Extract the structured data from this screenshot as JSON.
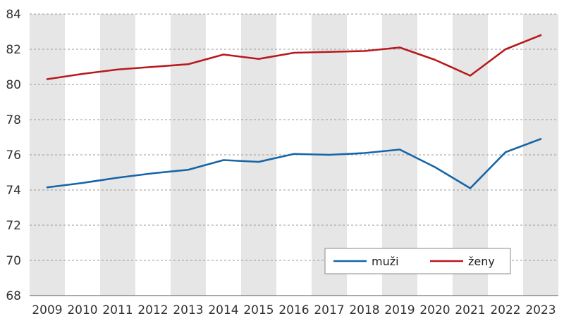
{
  "chart_data": {
    "type": "line",
    "title": "",
    "xlabel": "",
    "ylabel": "",
    "categories": [
      "2009",
      "2010",
      "2011",
      "2012",
      "2013",
      "2014",
      "2015",
      "2016",
      "2017",
      "2018",
      "2019",
      "2020",
      "2021",
      "2022",
      "2023"
    ],
    "ylim": [
      68,
      84
    ],
    "yticks": [
      68,
      70,
      72,
      74,
      76,
      78,
      80,
      82,
      84
    ],
    "grid": true,
    "alternating_column_bands": true,
    "legend_position": "bottom-right",
    "series": [
      {
        "name": "muži",
        "color": "#1565a8",
        "values": [
          74.15,
          74.4,
          74.7,
          74.95,
          75.15,
          75.7,
          75.6,
          76.05,
          76.0,
          76.1,
          76.3,
          75.3,
          74.1,
          76.15,
          76.9
        ]
      },
      {
        "name": "ženy",
        "color": "#b7191c",
        "values": [
          80.3,
          80.6,
          80.85,
          81.0,
          81.15,
          81.7,
          81.45,
          81.8,
          81.85,
          81.9,
          82.1,
          81.4,
          80.5,
          82.0,
          82.8
        ]
      }
    ],
    "colors": {
      "band": "#e6e6e6",
      "grid": "#9a9a9a",
      "axis": "#555555"
    }
  }
}
